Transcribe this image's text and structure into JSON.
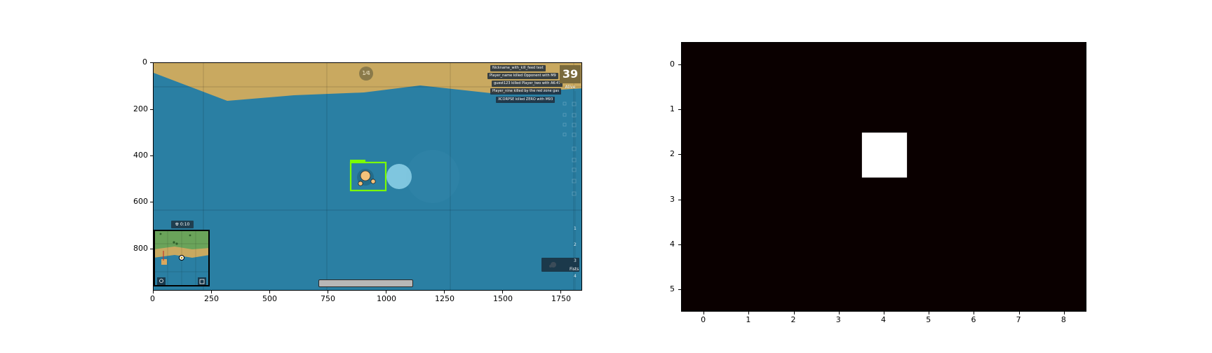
{
  "left_panel": {
    "x_ticks": [
      "0",
      "250",
      "500",
      "750",
      "1000",
      "1250",
      "1500",
      "1750"
    ],
    "y_ticks": [
      "0",
      "200",
      "400",
      "600",
      "800"
    ],
    "colors": {
      "water": "#2a7fa3",
      "sand": "#c9a960",
      "bbox": "#7cfc00",
      "player_skin": "#f4c27a"
    },
    "hud": {
      "alive_count": "39",
      "alive_label": "Alive",
      "compass": "1⁄4",
      "gas_timer": "☢ 0:10",
      "weapon_label": "Fists",
      "weapon_slots": [
        "1",
        "2",
        "3",
        "4"
      ],
      "kill_feed": [
        "Nickname_with_kill_feed text",
        "Player_name killed Opponent with M9",
        "guest123 killed Player_two with AK-47",
        "Player_nine killed by the red zone gas",
        "XCORPSE killed ZERO with M93"
      ]
    }
  },
  "chart_data": {
    "type": "heatmap",
    "rows": 6,
    "cols": 9,
    "x_ticks": [
      "0",
      "1",
      "2",
      "3",
      "4",
      "5",
      "6",
      "7",
      "8"
    ],
    "y_ticks": [
      "0",
      "1",
      "2",
      "3",
      "4",
      "5"
    ],
    "values": [
      [
        0,
        0,
        0,
        0,
        0,
        0,
        0,
        0,
        0
      ],
      [
        0,
        0,
        0,
        0,
        0,
        0,
        0,
        0,
        0
      ],
      [
        0,
        0,
        0,
        0,
        1,
        0,
        0,
        0,
        0
      ],
      [
        0,
        0,
        0,
        0,
        0,
        0,
        0,
        0,
        0
      ],
      [
        0,
        0,
        0,
        0,
        0,
        0,
        0,
        0,
        0
      ],
      [
        0,
        0,
        0,
        0,
        0,
        0,
        0,
        0,
        0
      ]
    ],
    "colormap": {
      "low": "#0a0000",
      "high": "#ffffff"
    },
    "grid": false
  }
}
